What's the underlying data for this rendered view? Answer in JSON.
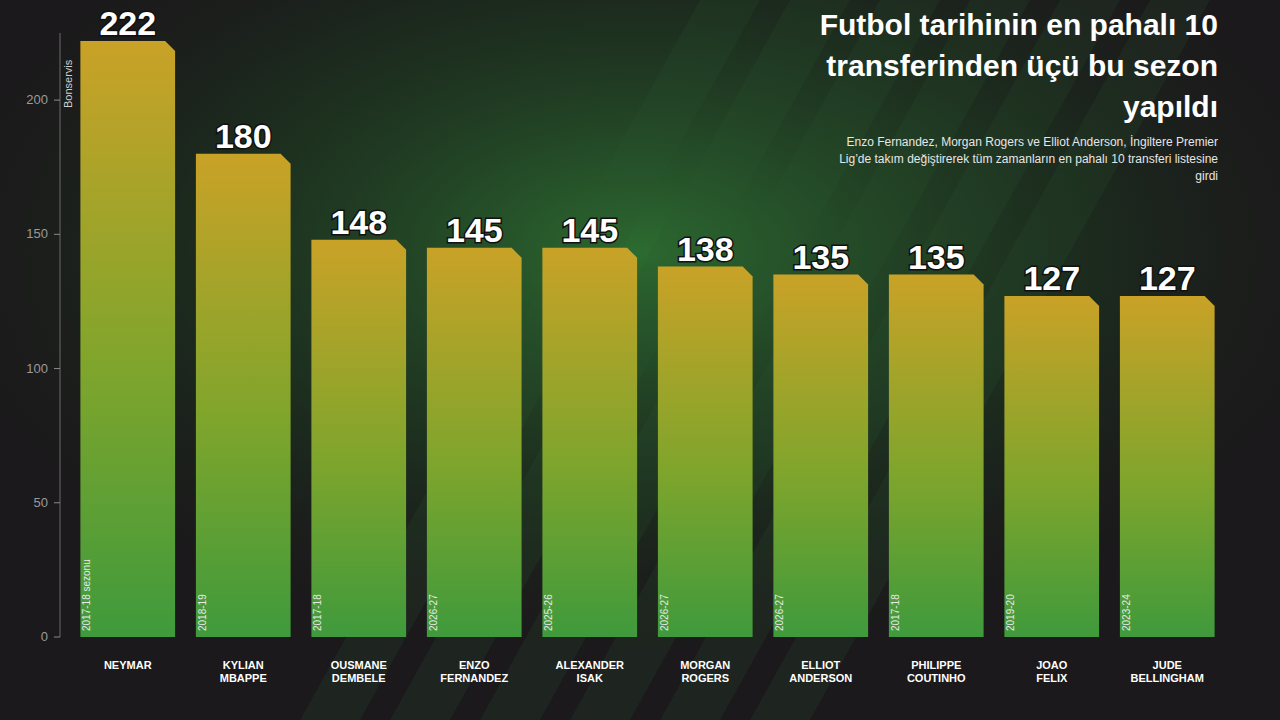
{
  "chart_data": {
    "type": "bar",
    "title": "Futbol tarihinin en pahalı 10 transferinden üçü bu sezon yapıldı",
    "subtitle": "Enzo Fernandez, Morgan Rogers ve Elliot Anderson, İngiltere Premier Lig’de takım değiştirerek tüm zamanların en pahalı 10 transferi listesine girdi",
    "y_label": "Bonservis",
    "categories": [
      "NEYMAR",
      "KYLIAN MBAPPE",
      "OUSMANE DEMBELE",
      "ENZO FERNANDEZ",
      "ALEXANDER ISAK",
      "MORGAN ROGERS",
      "ELLIOT ANDERSON",
      "PHILIPPE COUTINHO",
      "JOAO FELIX",
      "JUDE BELLINGHAM"
    ],
    "seasons": [
      "2017-18 sezonu",
      "2018-19",
      "2017-18",
      "2026-27",
      "2025-26",
      "2026-27",
      "2026-27",
      "2017-18",
      "2019-20",
      "2023-24"
    ],
    "values": [
      222,
      180,
      148,
      145,
      145,
      138,
      135,
      135,
      127,
      127
    ],
    "color": "#c9a227",
    "ylim": [
      0,
      225
    ],
    "yticks": [
      0,
      50,
      100,
      150,
      200
    ],
    "grid": false,
    "data_labels": true
  }
}
